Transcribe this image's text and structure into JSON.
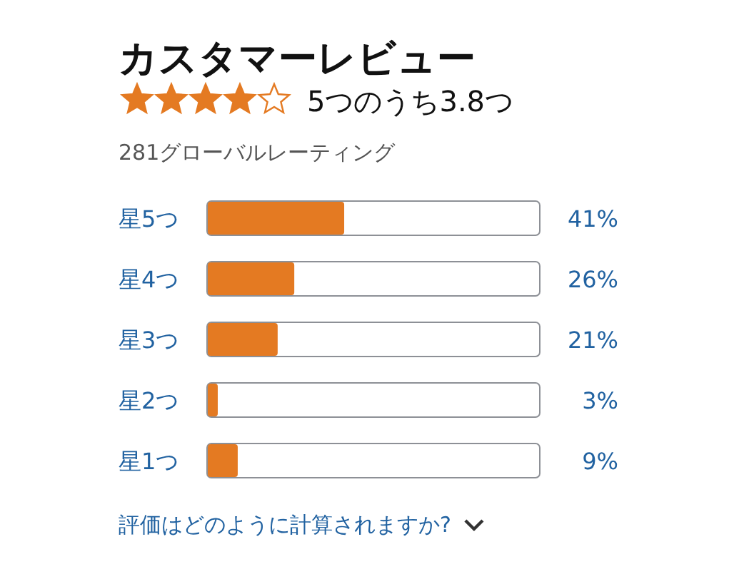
{
  "chart_data": {
    "type": "bar",
    "orientation": "horizontal",
    "title": "カスタマーレビュー",
    "subtitle": "5つのうち3.8つ",
    "categories": [
      "星5つ",
      "星4つ",
      "星3つ",
      "星2つ",
      "星1つ"
    ],
    "values": [
      41,
      26,
      21,
      3,
      9
    ],
    "value_labels": [
      "41%",
      "26%",
      "21%",
      "3%",
      "9%"
    ],
    "color": "#e47a22",
    "xlim": [
      0,
      100
    ],
    "annotations": [
      "281グローバルレーティング",
      "評価はどのように計算されますか?"
    ]
  }
}
